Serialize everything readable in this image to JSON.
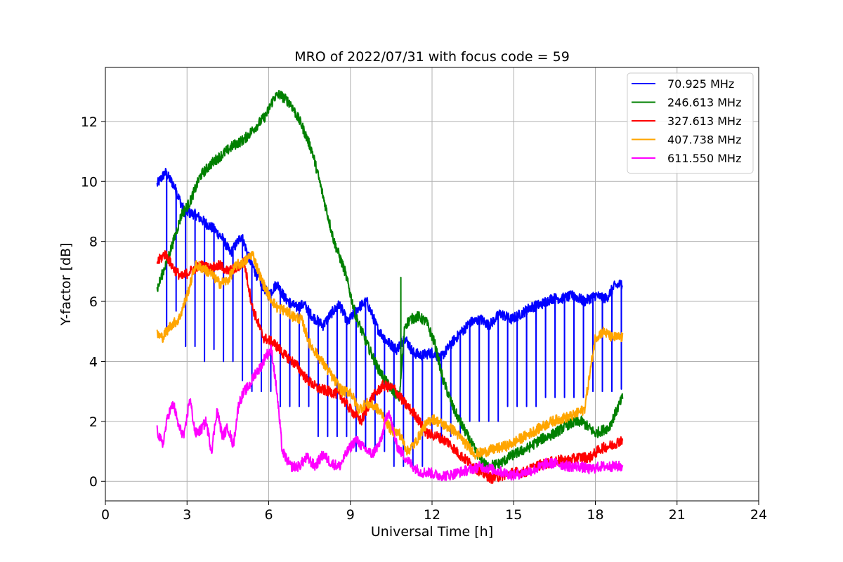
{
  "chart_data": {
    "type": "line",
    "title": "MRO of 2022/07/31 with focus code = 59",
    "xlabel": "Universal Time [h]",
    "ylabel": "Y-factor [dB]",
    "xlim": [
      0,
      24
    ],
    "ylim": [
      -0.65,
      13.8
    ],
    "xticks": [
      0,
      3,
      6,
      9,
      12,
      15,
      18,
      21,
      24
    ],
    "yticks": [
      0,
      2,
      4,
      6,
      8,
      10,
      12
    ],
    "grid": true,
    "legend_position": "top-right",
    "series": [
      {
        "name": "70.925 MHz",
        "legend_label": "  70.925 MHz",
        "color": "#0000ff",
        "x": [
          1.9,
          2.2,
          2.5,
          2.9,
          3.3,
          3.7,
          4.0,
          4.3,
          4.6,
          5.0,
          5.3,
          5.6,
          6.0,
          6.3,
          6.6,
          7.0,
          7.3,
          7.6,
          8.0,
          8.3,
          8.6,
          8.9,
          9.3,
          9.6,
          10.0,
          10.3,
          10.7,
          11.0,
          11.3,
          11.6,
          12.0,
          12.3,
          12.8,
          13.1,
          13.4,
          13.8,
          14.1,
          14.5,
          14.9,
          15.3,
          15.6,
          16.0,
          16.4,
          16.8,
          17.2,
          17.6,
          18.0,
          18.4,
          18.7,
          19.0
        ],
        "y": [
          9.9,
          10.3,
          9.9,
          9.0,
          8.9,
          8.6,
          8.4,
          8.1,
          7.6,
          8.2,
          7.4,
          6.8,
          6.2,
          6.6,
          6.1,
          5.8,
          5.9,
          5.5,
          5.2,
          5.6,
          5.9,
          5.3,
          5.8,
          6.0,
          5.1,
          4.7,
          4.4,
          4.8,
          4.3,
          4.2,
          4.3,
          4.1,
          4.7,
          5.0,
          5.3,
          5.4,
          5.2,
          5.6,
          5.4,
          5.6,
          5.8,
          5.9,
          6.1,
          6.1,
          6.2,
          6.0,
          6.2,
          6.1,
          6.5,
          6.6
        ],
        "dip_interval_h": 0.35,
        "dip_floor": [
          4.5,
          4.0,
          3.0,
          2.5,
          1.5,
          1.0,
          0.5,
          1.5,
          2.0,
          2.5,
          2.8,
          3.0
        ]
      },
      {
        "name": "246.613 MHz",
        "color": "#008000",
        "x": [
          1.9,
          2.2,
          2.5,
          2.8,
          3.1,
          3.5,
          3.9,
          4.3,
          4.7,
          5.1,
          5.5,
          5.9,
          6.2,
          6.4,
          6.8,
          7.2,
          7.6,
          8.0,
          8.4,
          8.8,
          9.2,
          9.6,
          10.0,
          10.4,
          10.8,
          11.0,
          11.2,
          11.5,
          11.8,
          12.1,
          12.4,
          12.8,
          13.2,
          13.6,
          14.0,
          14.5,
          15.0,
          15.5,
          16.0,
          16.5,
          17.0,
          17.5,
          18.0,
          18.5,
          19.0
        ],
        "y": [
          6.4,
          7.2,
          8.0,
          8.9,
          9.3,
          10.2,
          10.6,
          10.9,
          11.2,
          11.4,
          11.8,
          12.2,
          12.8,
          12.9,
          12.6,
          11.9,
          11.0,
          9.5,
          8.0,
          7.0,
          5.5,
          4.6,
          3.8,
          3.2,
          2.8,
          5.2,
          5.4,
          5.5,
          5.3,
          4.6,
          3.4,
          2.4,
          1.7,
          1.0,
          0.5,
          0.6,
          0.9,
          1.1,
          1.4,
          1.6,
          1.9,
          2.0,
          1.6,
          1.8,
          2.8
        ],
        "spikes": [
          [
            10.85,
            6.8
          ]
        ]
      },
      {
        "name": "327.613 MHz",
        "color": "#ff0000",
        "x": [
          1.9,
          2.2,
          2.5,
          2.8,
          3.1,
          3.5,
          3.9,
          4.2,
          4.5,
          4.8,
          5.1,
          5.4,
          5.8,
          6.2,
          6.6,
          7.0,
          7.4,
          7.8,
          8.2,
          8.6,
          9.0,
          9.4,
          9.8,
          10.2,
          10.6,
          11.0,
          11.4,
          11.8,
          12.2,
          12.6,
          13.0,
          13.4,
          13.8,
          14.2,
          14.6,
          15.0,
          15.4,
          15.8,
          16.2,
          16.6,
          17.0,
          17.4,
          17.8,
          18.2,
          18.6,
          19.0
        ],
        "y": [
          7.3,
          7.6,
          7.1,
          6.8,
          7.0,
          7.2,
          7.1,
          7.2,
          7.0,
          7.1,
          7.3,
          5.8,
          4.8,
          4.6,
          4.2,
          3.9,
          3.4,
          3.1,
          3.0,
          2.9,
          2.4,
          2.0,
          2.8,
          3.2,
          3.1,
          2.6,
          2.2,
          1.6,
          1.5,
          1.3,
          0.9,
          0.6,
          0.3,
          0.1,
          0.2,
          0.3,
          0.3,
          0.5,
          0.6,
          0.7,
          0.7,
          0.8,
          0.8,
          1.1,
          1.2,
          1.4
        ]
      },
      {
        "name": "407.738 MHz",
        "color": "#ffa500",
        "x": [
          1.9,
          2.1,
          2.4,
          2.7,
          3.0,
          3.3,
          3.6,
          3.9,
          4.2,
          4.5,
          4.8,
          5.1,
          5.4,
          5.7,
          6.0,
          6.3,
          6.6,
          6.9,
          7.2,
          7.5,
          7.8,
          8.1,
          8.4,
          8.7,
          9.0,
          9.3,
          9.6,
          9.9,
          10.2,
          10.5,
          10.8,
          11.1,
          11.4,
          11.7,
          12.0,
          12.4,
          12.8,
          13.2,
          13.6,
          14.0,
          14.4,
          14.8,
          15.2,
          15.6,
          16.0,
          16.4,
          16.8,
          17.2,
          17.6,
          18.0,
          18.3,
          18.6,
          19.0
        ],
        "y": [
          4.9,
          4.8,
          5.2,
          5.4,
          6.2,
          7.2,
          7.1,
          6.9,
          6.6,
          6.7,
          7.2,
          7.3,
          7.6,
          6.8,
          6.2,
          5.8,
          5.7,
          5.5,
          5.4,
          4.6,
          4.2,
          3.8,
          3.4,
          3.0,
          3.0,
          2.4,
          2.6,
          2.5,
          2.2,
          1.7,
          1.6,
          1.0,
          1.3,
          1.8,
          2.1,
          1.9,
          1.7,
          1.3,
          0.9,
          1.0,
          1.1,
          1.2,
          1.4,
          1.6,
          1.8,
          2.0,
          2.1,
          2.2,
          2.4,
          4.8,
          5.0,
          4.8,
          4.8
        ]
      },
      {
        "name": "611.550 MHz",
        "color": "#ff00ff",
        "x": [
          1.9,
          2.1,
          2.3,
          2.5,
          2.7,
          2.9,
          3.1,
          3.3,
          3.5,
          3.7,
          3.9,
          4.1,
          4.3,
          4.5,
          4.7,
          4.9,
          5.1,
          5.3,
          5.5,
          5.7,
          5.9,
          6.1,
          6.3,
          6.5,
          6.8,
          7.1,
          7.4,
          7.7,
          8.0,
          8.3,
          8.6,
          8.9,
          9.2,
          9.5,
          9.8,
          10.1,
          10.4,
          10.7,
          11.0,
          11.3,
          11.6,
          11.9,
          12.2,
          12.6,
          13.0,
          13.4,
          13.8,
          14.2,
          14.6,
          15.0,
          15.4,
          15.8,
          16.2,
          16.6,
          17.0,
          17.4,
          17.8,
          18.2,
          18.6,
          19.0
        ],
        "y": [
          1.7,
          1.2,
          2.2,
          2.6,
          1.8,
          1.5,
          2.8,
          1.6,
          1.7,
          2.0,
          1.0,
          2.4,
          1.5,
          1.8,
          1.2,
          2.6,
          3.0,
          3.2,
          3.6,
          3.8,
          4.2,
          4.4,
          3.0,
          1.0,
          0.5,
          0.5,
          0.8,
          0.5,
          0.9,
          0.6,
          0.5,
          1.0,
          1.4,
          1.1,
          0.9,
          1.3,
          2.4,
          1.2,
          0.8,
          0.5,
          0.3,
          0.3,
          0.2,
          0.2,
          0.3,
          0.4,
          0.5,
          0.4,
          0.3,
          0.2,
          0.3,
          0.4,
          0.6,
          0.6,
          0.5,
          0.5,
          0.4,
          0.5,
          0.5,
          0.5
        ]
      }
    ]
  }
}
